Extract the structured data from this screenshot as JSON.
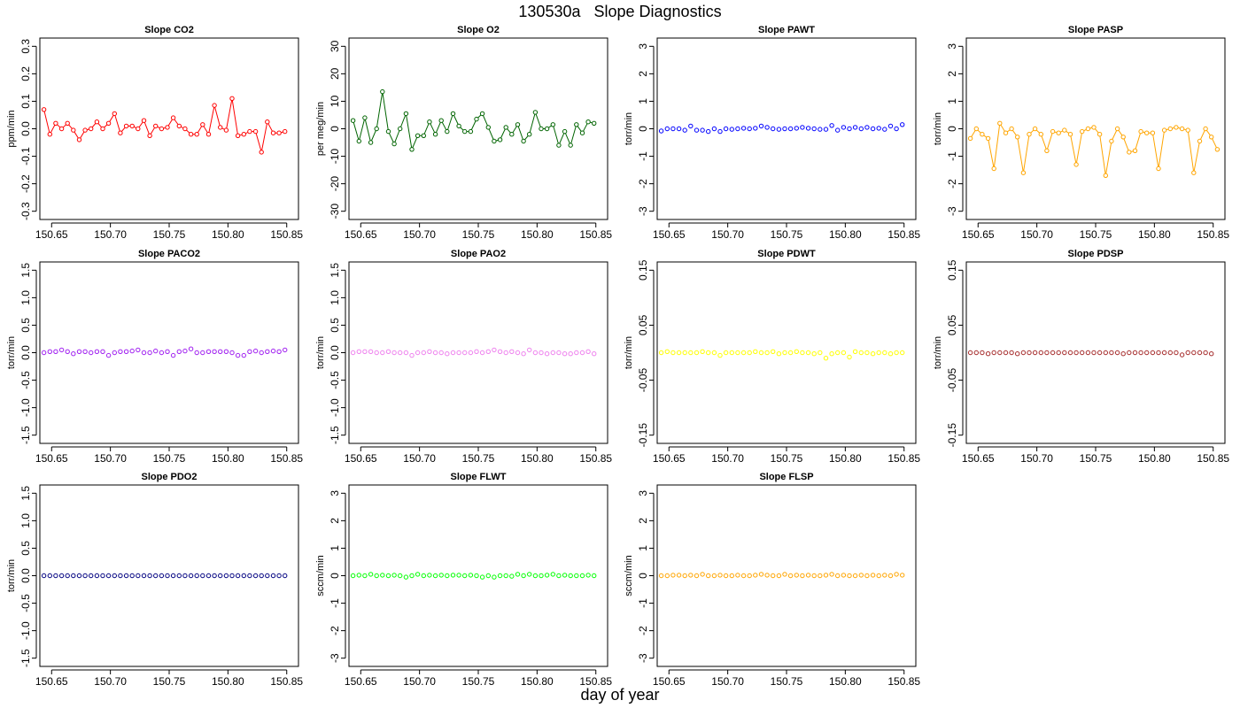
{
  "title": "130530a   Slope Diagnostics",
  "xlabel": "day of year",
  "chart_data": [
    {
      "type": "line",
      "title": "Slope CO2",
      "ylabel": "ppm/min",
      "color": "#ff0000",
      "lines": true,
      "xlim": [
        150.64,
        150.86
      ],
      "ylim": [
        -0.33,
        0.33
      ],
      "xticks": [
        "150.65",
        "150.70",
        "150.75",
        "150.80",
        "150.85"
      ],
      "yticks": [
        "-0.3",
        "-0.2",
        "-0.1",
        "0.0",
        "0.1",
        "0.2",
        "0.3"
      ],
      "x_start": 150.6435,
      "x_step": 0.005,
      "y": [
        0.07,
        -0.02,
        0.02,
        0.0,
        0.02,
        -0.005,
        -0.04,
        -0.005,
        0.0,
        0.025,
        0.0,
        0.02,
        0.055,
        -0.015,
        0.01,
        0.01,
        0.0,
        0.03,
        -0.025,
        0.01,
        0.0,
        0.005,
        0.04,
        0.01,
        0.0,
        -0.02,
        -0.02,
        0.015,
        -0.02,
        0.085,
        0.005,
        -0.005,
        0.11,
        -0.025,
        -0.02,
        -0.01,
        -0.01,
        -0.085,
        0.025,
        -0.015,
        -0.015,
        -0.01
      ]
    },
    {
      "type": "line",
      "title": "Slope O2",
      "ylabel": "per meg/min",
      "color": "#006400",
      "lines": true,
      "xlim": [
        150.64,
        150.86
      ],
      "ylim": [
        -33,
        33
      ],
      "xticks": [
        "150.65",
        "150.70",
        "150.75",
        "150.80",
        "150.85"
      ],
      "yticks": [
        "-30",
        "-20",
        "-10",
        "0",
        "10",
        "20",
        "30"
      ],
      "x_start": 150.6435,
      "x_step": 0.005,
      "y": [
        3,
        -4.5,
        4,
        -5,
        0,
        13.5,
        -1,
        -5.5,
        0,
        5.5,
        -7.5,
        -2.5,
        -2.5,
        2.5,
        -2,
        3,
        -1,
        5.5,
        1,
        -1,
        -1,
        3.5,
        5.5,
        0.5,
        -4.5,
        -4,
        0.5,
        -2,
        1.5,
        -4.5,
        -2,
        6,
        0,
        0,
        1.5,
        -6,
        -1,
        -6,
        1.5,
        -1.5,
        2.5,
        2
      ]
    },
    {
      "type": "scatter",
      "title": "Slope PAWT",
      "ylabel": "torr/min",
      "color": "#0000ff",
      "lines": false,
      "xlim": [
        150.64,
        150.86
      ],
      "ylim": [
        -3.3,
        3.3
      ],
      "xticks": [
        "150.65",
        "150.70",
        "150.75",
        "150.80",
        "150.85"
      ],
      "yticks": [
        "-3",
        "-2",
        "-1",
        "0",
        "1",
        "2",
        "3"
      ],
      "x_start": 150.6435,
      "x_step": 0.005,
      "y": [
        -0.08,
        0.0,
        0.0,
        0.0,
        -0.05,
        0.1,
        -0.05,
        -0.05,
        -0.1,
        0.0,
        -0.1,
        0.0,
        -0.02,
        0.0,
        0.02,
        0.0,
        0.02,
        0.1,
        0.05,
        0.0,
        -0.02,
        0.0,
        0.0,
        0.02,
        0.05,
        0.02,
        0.0,
        -0.02,
        -0.02,
        0.12,
        -0.05,
        0.05,
        0.0,
        0.05,
        0.0,
        0.05,
        0.0,
        0.02,
        -0.02,
        0.1,
        0.0,
        0.15
      ]
    },
    {
      "type": "line",
      "title": "Slope PASP",
      "ylabel": "torr/min",
      "color": "#ffa500",
      "lines": true,
      "xlim": [
        150.64,
        150.86
      ],
      "ylim": [
        -3.3,
        3.3
      ],
      "xticks": [
        "150.65",
        "150.70",
        "150.75",
        "150.80",
        "150.85"
      ],
      "yticks": [
        "-3",
        "-2",
        "-1",
        "0",
        "1",
        "2",
        "3"
      ],
      "x_start": 150.6435,
      "x_step": 0.005,
      "y": [
        -0.35,
        0.0,
        -0.2,
        -0.35,
        -1.45,
        0.2,
        -0.15,
        0.0,
        -0.3,
        -1.6,
        -0.2,
        0.0,
        -0.2,
        -0.8,
        -0.1,
        -0.15,
        -0.05,
        -0.2,
        -1.3,
        -0.1,
        0.0,
        0.05,
        -0.2,
        -1.7,
        -0.45,
        0.0,
        -0.3,
        -0.85,
        -0.8,
        -0.1,
        -0.15,
        -0.15,
        -1.45,
        -0.05,
        0.0,
        0.05,
        0.0,
        -0.05,
        -1.6,
        -0.45,
        0.0,
        -0.3,
        -0.75
      ]
    },
    {
      "type": "scatter",
      "title": "Slope PACO2",
      "ylabel": "torr/min",
      "color": "#a020f0",
      "lines": false,
      "xlim": [
        150.64,
        150.86
      ],
      "ylim": [
        -1.65,
        1.65
      ],
      "xticks": [
        "150.65",
        "150.70",
        "150.75",
        "150.80",
        "150.85"
      ],
      "yticks": [
        "-1.5",
        "-1.0",
        "-0.5",
        "0.0",
        "0.5",
        "1.0",
        "1.5"
      ],
      "x_start": 150.6435,
      "x_step": 0.005,
      "y": [
        0.0,
        0.02,
        0.02,
        0.05,
        0.02,
        -0.02,
        0.02,
        0.02,
        0.0,
        0.02,
        0.02,
        -0.05,
        0.0,
        0.02,
        0.02,
        0.03,
        0.05,
        0.0,
        0.0,
        0.03,
        0.0,
        0.02,
        -0.05,
        0.02,
        0.03,
        0.07,
        0.0,
        0.0,
        0.02,
        0.02,
        0.02,
        0.02,
        0.0,
        -0.05,
        -0.05,
        0.02,
        0.03,
        0.0,
        0.02,
        0.03,
        0.02,
        0.05
      ]
    },
    {
      "type": "scatter",
      "title": "Slope PAO2",
      "ylabel": "torr/min",
      "color": "#ee82ee",
      "lines": false,
      "xlim": [
        150.64,
        150.86
      ],
      "ylim": [
        -1.65,
        1.65
      ],
      "xticks": [
        "150.65",
        "150.70",
        "150.75",
        "150.80",
        "150.85"
      ],
      "yticks": [
        "-1.5",
        "-1.0",
        "-0.5",
        "0.0",
        "0.5",
        "1.0",
        "1.5"
      ],
      "x_start": 150.6435,
      "x_step": 0.005,
      "y": [
        0.0,
        0.02,
        0.02,
        0.02,
        0.0,
        0.0,
        0.02,
        0.0,
        0.0,
        0.0,
        -0.05,
        0.0,
        0.0,
        0.02,
        0.0,
        0.0,
        -0.02,
        0.0,
        0.0,
        0.0,
        0.0,
        0.02,
        0.0,
        0.02,
        0.05,
        0.02,
        0.0,
        0.02,
        0.0,
        -0.02,
        0.05,
        0.0,
        0.0,
        -0.02,
        0.0,
        0.0,
        -0.02,
        -0.02,
        0.0,
        0.0,
        0.02,
        -0.02
      ]
    },
    {
      "type": "scatter",
      "title": "Slope PDWT",
      "ylabel": "torr/min",
      "color": "#ffff00",
      "lines": false,
      "xlim": [
        150.64,
        150.86
      ],
      "ylim": [
        -0.165,
        0.165
      ],
      "xticks": [
        "150.65",
        "150.70",
        "150.75",
        "150.80",
        "150.85"
      ],
      "yticks": [
        "-0.15",
        "-0.05",
        "0.05",
        "0.15"
      ],
      "x_start": 150.6435,
      "x_step": 0.005,
      "y": [
        0.0,
        0.002,
        0.0,
        0.0,
        0.0,
        0.0,
        0.0,
        0.002,
        0.0,
        0.0,
        -0.005,
        0.0,
        0.0,
        0.0,
        0.0,
        0.0,
        0.002,
        0.0,
        0.0,
        0.002,
        -0.002,
        0.0,
        0.0,
        0.002,
        0.0,
        0.0,
        -0.002,
        0.0,
        -0.01,
        -0.002,
        0.0,
        0.0,
        -0.008,
        0.002,
        0.0,
        0.0,
        -0.002,
        0.0,
        0.0,
        -0.002,
        0.0,
        0.0
      ]
    },
    {
      "type": "scatter",
      "title": "Slope PDSP",
      "ylabel": "torr/min",
      "color": "#a52a2a",
      "lines": false,
      "xlim": [
        150.64,
        150.86
      ],
      "ylim": [
        -0.165,
        0.165
      ],
      "xticks": [
        "150.65",
        "150.70",
        "150.75",
        "150.80",
        "150.85"
      ],
      "yticks": [
        "-0.15",
        "-0.05",
        "0.05",
        "0.15"
      ],
      "x_start": 150.6435,
      "x_step": 0.005,
      "y": [
        0.0,
        0.0,
        0.0,
        -0.002,
        0.0,
        0.0,
        0.0,
        0.0,
        -0.002,
        0.0,
        0.0,
        0.0,
        0.0,
        0.0,
        0.0,
        0.0,
        0.0,
        0.0,
        0.0,
        0.0,
        0.0,
        0.0,
        0.0,
        0.0,
        0.0,
        0.0,
        -0.002,
        0.0,
        0.0,
        0.0,
        0.0,
        0.0,
        0.0,
        0.0,
        0.0,
        0.0,
        -0.004,
        0.0,
        0.0,
        0.0,
        0.0,
        -0.002
      ]
    },
    {
      "type": "scatter",
      "title": "Slope PDO2",
      "ylabel": "torr/min",
      "color": "#000080",
      "lines": false,
      "xlim": [
        150.64,
        150.86
      ],
      "ylim": [
        -1.65,
        1.65
      ],
      "xticks": [
        "150.65",
        "150.70",
        "150.75",
        "150.80",
        "150.85"
      ],
      "yticks": [
        "-1.5",
        "-1.0",
        "-0.5",
        "0.0",
        "0.5",
        "1.0",
        "1.5"
      ],
      "x_start": 150.6435,
      "x_step": 0.005,
      "y": [
        0,
        0,
        0,
        0,
        0,
        0,
        0,
        0,
        0,
        0,
        0,
        0,
        0,
        0,
        0,
        0,
        0,
        0,
        0,
        0,
        0,
        0,
        0,
        0,
        0,
        0,
        0,
        0,
        0,
        0,
        0,
        0,
        0,
        0,
        0,
        0,
        0,
        0,
        0,
        0,
        0,
        0
      ]
    },
    {
      "type": "scatter",
      "title": "Slope FLWT",
      "ylabel": "sccm/min",
      "color": "#00ff00",
      "lines": false,
      "xlim": [
        150.64,
        150.86
      ],
      "ylim": [
        -3.3,
        3.3
      ],
      "xticks": [
        "150.65",
        "150.70",
        "150.75",
        "150.80",
        "150.85"
      ],
      "yticks": [
        "-3",
        "-2",
        "-1",
        "0",
        "1",
        "2",
        "3"
      ],
      "x_start": 150.6435,
      "x_step": 0.005,
      "y": [
        0.0,
        0.02,
        0.0,
        0.05,
        0.0,
        0.02,
        0.0,
        0.02,
        0.0,
        -0.05,
        0.0,
        0.05,
        0.0,
        0.02,
        0.0,
        0.02,
        0.0,
        0.02,
        0.02,
        0.0,
        0.02,
        0.0,
        -0.05,
        0.0,
        -0.05,
        0.0,
        0.0,
        -0.02,
        0.05,
        0.0,
        0.05,
        0.0,
        0.0,
        0.02,
        0.05,
        0.0,
        0.02,
        0.0,
        0.0,
        0.0,
        0.02,
        0.0
      ]
    },
    {
      "type": "scatter",
      "title": "Slope FLSP",
      "ylabel": "sccm/min",
      "color": "#ffa500",
      "lines": false,
      "xlim": [
        150.64,
        150.86
      ],
      "ylim": [
        -3.3,
        3.3
      ],
      "xticks": [
        "150.65",
        "150.70",
        "150.75",
        "150.80",
        "150.85"
      ],
      "yticks": [
        "-3",
        "-2",
        "-1",
        "0",
        "1",
        "2",
        "3"
      ],
      "x_start": 150.6435,
      "x_step": 0.005,
      "y": [
        0.0,
        0.0,
        0.02,
        0.02,
        0.0,
        0.02,
        0.0,
        0.05,
        0.0,
        0.0,
        0.02,
        0.0,
        0.0,
        0.02,
        0.0,
        0.0,
        0.02,
        0.05,
        0.02,
        0.0,
        0.0,
        0.05,
        0.0,
        0.02,
        0.0,
        0.02,
        0.0,
        0.0,
        0.02,
        0.05,
        0.0,
        0.02,
        0.0,
        0.0,
        0.02,
        0.0,
        0.02,
        0.0,
        0.02,
        0.0,
        0.05,
        0.02
      ]
    }
  ]
}
